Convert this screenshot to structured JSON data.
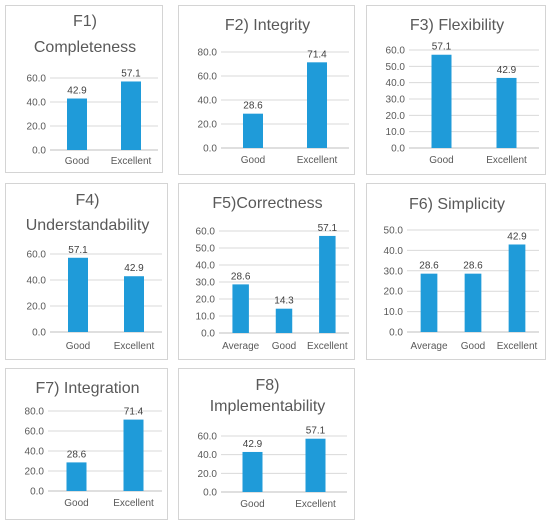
{
  "colors": {
    "bar": "#1f9bd9",
    "grid": "#d9d9d9",
    "text": "#595959",
    "border": "#d4d4d4"
  },
  "chart_data": [
    {
      "type": "bar",
      "title": "F1) Completeness",
      "categories": [
        "Good",
        "Excellent"
      ],
      "values": [
        42.9,
        57.1
      ],
      "ylim": [
        0,
        60
      ],
      "yticks": [
        0,
        20,
        40,
        60
      ],
      "grid": true
    },
    {
      "type": "bar",
      "title": "F2) Integrity",
      "categories": [
        "Good",
        "Excellent"
      ],
      "values": [
        28.6,
        71.4
      ],
      "ylim": [
        0,
        80
      ],
      "yticks": [
        0,
        20,
        40,
        60,
        80
      ],
      "grid": true
    },
    {
      "type": "bar",
      "title": "F3) Flexibility",
      "categories": [
        "Good",
        "Excellent"
      ],
      "values": [
        57.1,
        42.9
      ],
      "ylim": [
        0,
        60
      ],
      "yticks": [
        0,
        10,
        20,
        30,
        40,
        50,
        60
      ],
      "grid": true
    },
    {
      "type": "bar",
      "title": "F4) Understandability",
      "categories": [
        "Good",
        "Excellent"
      ],
      "values": [
        57.1,
        42.9
      ],
      "ylim": [
        0,
        60
      ],
      "yticks": [
        0,
        20,
        40,
        60
      ],
      "grid": true
    },
    {
      "type": "bar",
      "title": "F5)Correctness",
      "categories": [
        "Average",
        "Good",
        "Excellent"
      ],
      "values": [
        28.6,
        14.3,
        57.1
      ],
      "ylim": [
        0,
        60
      ],
      "yticks": [
        0,
        10,
        20,
        30,
        40,
        50,
        60
      ],
      "grid": true
    },
    {
      "type": "bar",
      "title": "F6) Simplicity",
      "categories": [
        "Average",
        "Good",
        "Excellent"
      ],
      "values": [
        28.6,
        28.6,
        42.9
      ],
      "ylim": [
        0,
        50
      ],
      "yticks": [
        0,
        10,
        20,
        30,
        40,
        50
      ],
      "grid": true
    },
    {
      "type": "bar",
      "title": "F7) Integration",
      "categories": [
        "Good",
        "Excellent"
      ],
      "values": [
        28.6,
        71.4
      ],
      "ylim": [
        0,
        80
      ],
      "yticks": [
        0,
        20,
        40,
        60,
        80
      ],
      "grid": true
    },
    {
      "type": "bar",
      "title": "F8) Implementability",
      "categories": [
        "Good",
        "Excellent"
      ],
      "values": [
        42.9,
        57.1
      ],
      "ylim": [
        0,
        60
      ],
      "yticks": [
        0,
        20,
        40,
        60
      ],
      "grid": true
    }
  ]
}
